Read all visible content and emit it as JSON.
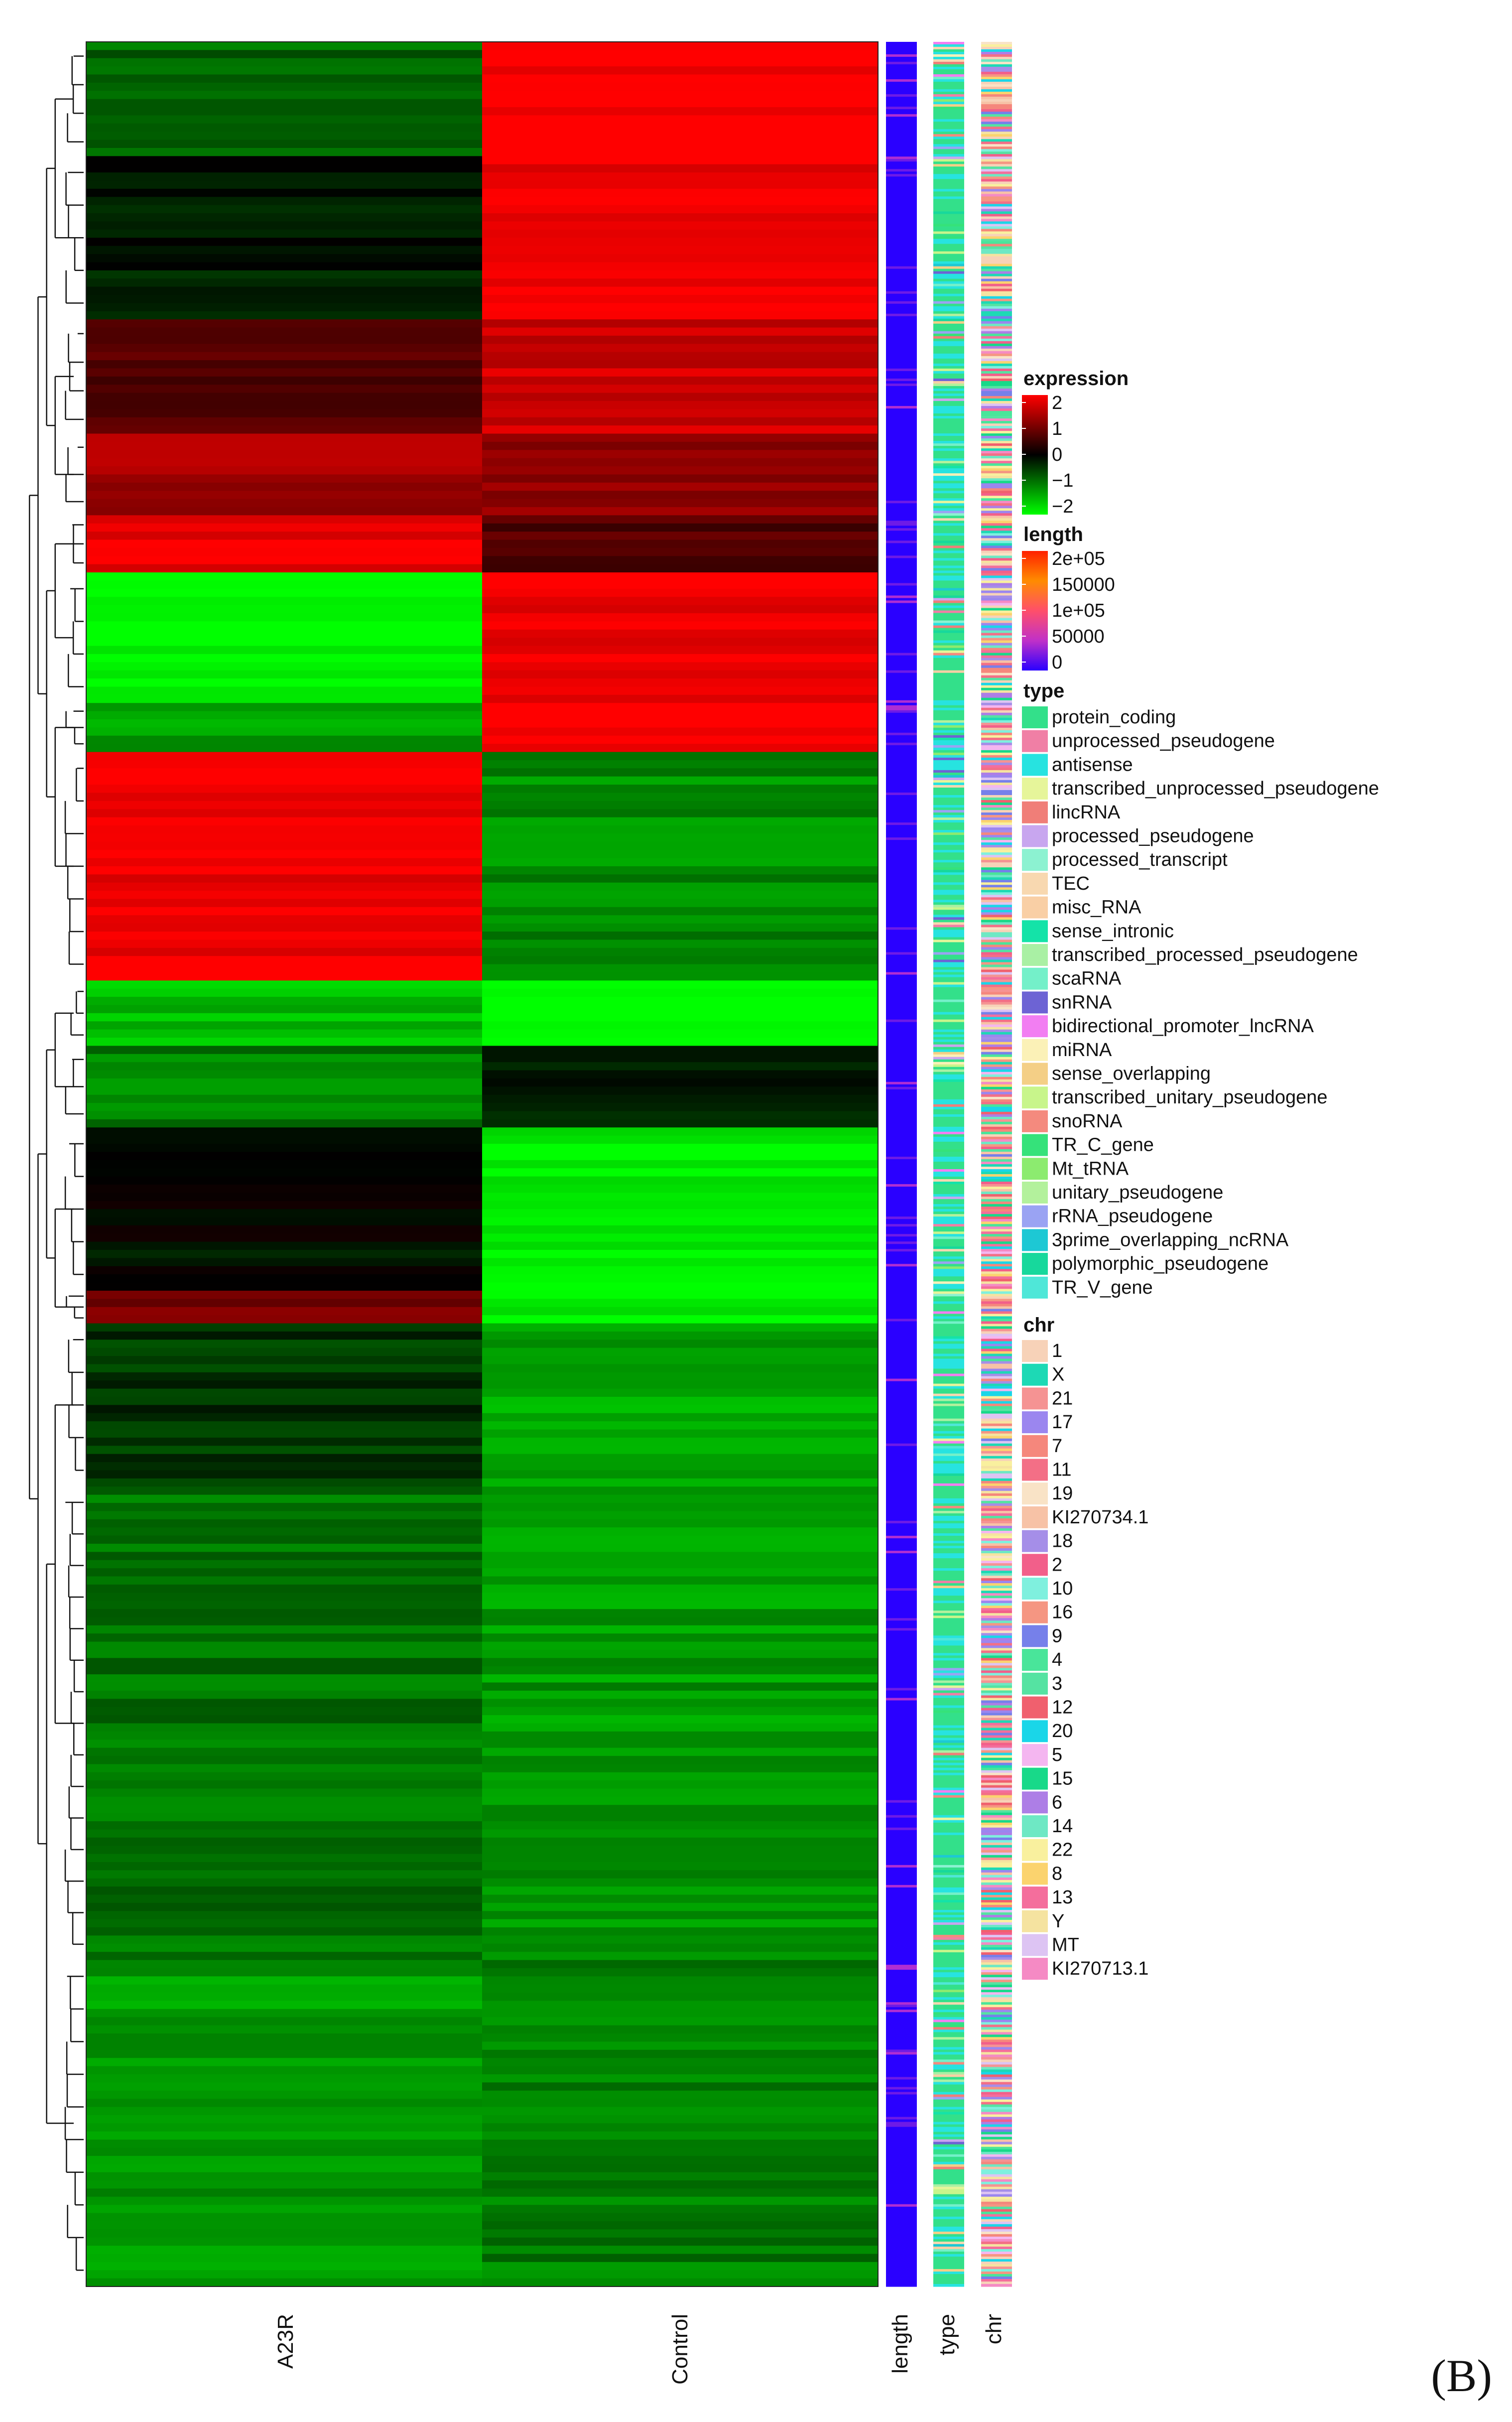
{
  "chart_data": {
    "type": "heatmap",
    "panel_label": "(B)",
    "columns": [
      "A23R",
      "Control"
    ],
    "annotation_columns": [
      "length",
      "type",
      "chr"
    ],
    "clusters": [
      {
        "rows": 14,
        "A23R": -0.8,
        "Control": 2.0
      },
      {
        "rows": 20,
        "A23R": -0.2,
        "Control": 1.9
      },
      {
        "rows": 14,
        "A23R": 0.6,
        "Control": 1.6
      },
      {
        "rows": 10,
        "A23R": 1.3,
        "Control": 1.1
      },
      {
        "rows": 7,
        "A23R": 1.9,
        "Control": 0.6
      },
      {
        "rows": 16,
        "A23R": -2.0,
        "Control": 1.8
      },
      {
        "rows": 6,
        "A23R": -1.3,
        "Control": 2.0
      },
      {
        "rows": 28,
        "A23R": 1.9,
        "Control": -1.1
      },
      {
        "rows": 8,
        "A23R": -1.5,
        "Control": -2.0
      },
      {
        "rows": 10,
        "A23R": -1.0,
        "Control": -0.3
      },
      {
        "rows": 20,
        "A23R": -0.1,
        "Control": -1.9
      },
      {
        "rows": 4,
        "A23R": 0.9,
        "Control": -1.9
      },
      {
        "rows": 20,
        "A23R": -0.4,
        "Control": -1.3
      },
      {
        "rows": 58,
        "A23R": -0.9,
        "Control": -1.2
      },
      {
        "rows": 40,
        "A23R": -1.2,
        "Control": -1.0
      }
    ],
    "legend_expression": {
      "title": "expression",
      "ticks": [
        "2",
        "1",
        "0",
        "−1",
        "−2"
      ],
      "range": [
        -2,
        2
      ],
      "low": "#00ff00",
      "mid": "#000000",
      "high": "#ff0000"
    },
    "legend_length": {
      "title": "length",
      "ticks": [
        "2e+05",
        "150000",
        "1e+05",
        "50000",
        "0"
      ],
      "range": [
        0,
        200000
      ],
      "stops": [
        "#2a00ff",
        "#c030c8",
        "#ff4f6a",
        "#ff8c00",
        "#ff2000"
      ]
    },
    "legend_type": {
      "title": "type",
      "items": [
        {
          "label": "protein_coding",
          "color": "#33e08a"
        },
        {
          "label": "unprocessed_pseudogene",
          "color": "#f07fa5"
        },
        {
          "label": "antisense",
          "color": "#27e3e0"
        },
        {
          "label": "transcribed_unprocessed_pseudogene",
          "color": "#e6f59a"
        },
        {
          "label": "lincRNA",
          "color": "#f07e78"
        },
        {
          "label": "processed_pseudogene",
          "color": "#c8a6ef"
        },
        {
          "label": "processed_transcript",
          "color": "#8cf2d1"
        },
        {
          "label": "TEC",
          "color": "#f8d8b0"
        },
        {
          "label": "misc_RNA",
          "color": "#f9cfa5"
        },
        {
          "label": "sense_intronic",
          "color": "#14e3a8"
        },
        {
          "label": "transcribed_processed_pseudogene",
          "color": "#a9f0a4"
        },
        {
          "label": "scaRNA",
          "color": "#74f0c9"
        },
        {
          "label": "snRNA",
          "color": "#6d63d4"
        },
        {
          "label": "bidirectional_promoter_lncRNA",
          "color": "#f27ef2"
        },
        {
          "label": "miRNA",
          "color": "#fbf1b7"
        },
        {
          "label": "sense_overlapping",
          "color": "#f4cf86"
        },
        {
          "label": "transcribed_unitary_pseudogene",
          "color": "#c8f58b"
        },
        {
          "label": "snoRNA",
          "color": "#f48a7e"
        },
        {
          "label": "TR_C_gene",
          "color": "#35e27a"
        },
        {
          "label": "Mt_tRNA",
          "color": "#8ceb6f"
        },
        {
          "label": "unitary_pseudogene",
          "color": "#b3f19c"
        },
        {
          "label": "rRNA_pseudogene",
          "color": "#9aa3f3"
        },
        {
          "label": "3prime_overlapping_ncRNA",
          "color": "#1dc8d4"
        },
        {
          "label": "polymorphic_pseudogene",
          "color": "#17d89c"
        },
        {
          "label": "TR_V_gene",
          "color": "#4fe7d8"
        }
      ]
    },
    "legend_chr": {
      "title": "chr",
      "items": [
        {
          "label": "1",
          "color": "#f7d2b8"
        },
        {
          "label": "X",
          "color": "#1dd9b5"
        },
        {
          "label": "21",
          "color": "#f59393"
        },
        {
          "label": "17",
          "color": "#9b86ef"
        },
        {
          "label": "7",
          "color": "#f5877c"
        },
        {
          "label": "11",
          "color": "#f36f86"
        },
        {
          "label": "19",
          "color": "#f9e3c6"
        },
        {
          "label": "KI270734.1",
          "color": "#f7c2a6"
        },
        {
          "label": "18",
          "color": "#a58ee8"
        },
        {
          "label": "2",
          "color": "#f25f8a"
        },
        {
          "label": "10",
          "color": "#7ff0de"
        },
        {
          "label": "16",
          "color": "#f59682"
        },
        {
          "label": "9",
          "color": "#7680ea"
        },
        {
          "label": "4",
          "color": "#49e59a"
        },
        {
          "label": "3",
          "color": "#55e3a2"
        },
        {
          "label": "12",
          "color": "#f0606e"
        },
        {
          "label": "20",
          "color": "#1ad6e8"
        },
        {
          "label": "5",
          "color": "#f4b6f0"
        },
        {
          "label": "15",
          "color": "#18d989"
        },
        {
          "label": "6",
          "color": "#ad7ee6"
        },
        {
          "label": "14",
          "color": "#6ee8c4"
        },
        {
          "label": "22",
          "color": "#f9f09e"
        },
        {
          "label": "8",
          "color": "#fbd36e"
        },
        {
          "label": "13",
          "color": "#f46e9c"
        },
        {
          "label": "Y",
          "color": "#f5e3a0"
        },
        {
          "label": "MT",
          "color": "#ddc4f3"
        },
        {
          "label": "KI270713.1",
          "color": "#f58ac4"
        }
      ]
    }
  }
}
